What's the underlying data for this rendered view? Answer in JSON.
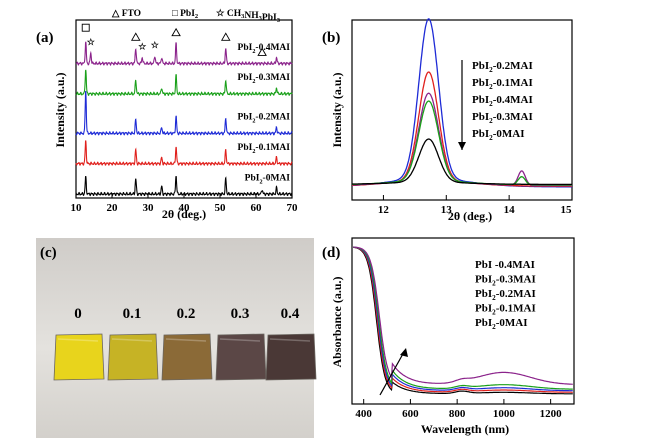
{
  "figure": {
    "panel_a_label": "(a)",
    "panel_b_label": "(b)",
    "panel_c_label": "(c)",
    "panel_d_label": "(d)"
  },
  "photo": {
    "samples": [
      "0",
      "0.1",
      "0.2",
      "0.3",
      "0.4"
    ],
    "film_colors": [
      "#e8d41c",
      "#c6b325",
      "#8b6a37",
      "#5b4746",
      "#4a3836"
    ]
  },
  "chart_data": [
    {
      "type": "line",
      "panel": "(a)",
      "xlabel": "2θ (deg.)",
      "ylabel": "Intensity (a.u.)",
      "xlim": [
        10,
        70
      ],
      "xticks": [
        "10",
        "20",
        "30",
        "40",
        "50",
        "60",
        "70"
      ],
      "marker_legend": [
        "△ FTO",
        "□ PbI2",
        "☆ CH3NH3PbI3"
      ],
      "peak_positions_deg": {
        "PbI2": 12.7,
        "FTO": [
          26.6,
          37.8,
          51.6,
          61.7,
          65.7
        ],
        "CH3NH3PbI3": [
          14.1,
          28.4,
          31.9
        ]
      },
      "series": [
        {
          "name": "PbI2-0MAI",
          "color": "#000000",
          "offset": 0.0,
          "peaks": [
            [
              12.7,
              0.55
            ],
            [
              26.6,
              0.5
            ],
            [
              33.8,
              0.25
            ],
            [
              37.8,
              0.6
            ],
            [
              51.6,
              0.5
            ],
            [
              61.7,
              0.15
            ],
            [
              65.7,
              0.2
            ]
          ]
        },
        {
          "name": "PbI2-0.1MAI",
          "color": "#e0201c",
          "offset": 1.0,
          "peaks": [
            [
              12.7,
              0.75
            ],
            [
              26.6,
              0.45
            ],
            [
              33.8,
              0.2
            ],
            [
              37.8,
              0.55
            ],
            [
              51.6,
              0.45
            ],
            [
              65.7,
              0.2
            ]
          ]
        },
        {
          "name": "PbI2-0.2MAI",
          "color": "#1e2bd6",
          "offset": 2.0,
          "peaks": [
            [
              12.7,
              1.4
            ],
            [
              26.6,
              0.45
            ],
            [
              33.8,
              0.2
            ],
            [
              37.8,
              0.55
            ],
            [
              51.6,
              0.5
            ],
            [
              65.7,
              0.2
            ]
          ]
        },
        {
          "name": "PbI2-0.3MAI",
          "color": "#1aa01a",
          "offset": 3.3,
          "peaks": [
            [
              12.7,
              0.8
            ],
            [
              26.6,
              0.45
            ],
            [
              33.8,
              0.2
            ],
            [
              37.8,
              0.6
            ],
            [
              51.6,
              0.45
            ],
            [
              65.7,
              0.2
            ]
          ]
        },
        {
          "name": "PbI2-0.4MAI",
          "color": "#8b238b",
          "offset": 4.3,
          "peaks": [
            [
              12.7,
              0.7
            ],
            [
              14.1,
              0.35
            ],
            [
              26.6,
              0.5
            ],
            [
              28.4,
              0.2
            ],
            [
              31.9,
              0.25
            ],
            [
              33.8,
              0.2
            ],
            [
              37.8,
              0.65
            ],
            [
              51.6,
              0.5
            ],
            [
              65.7,
              0.2
            ]
          ]
        }
      ]
    },
    {
      "type": "line",
      "panel": "(b)",
      "xlabel": "2θ (deg.)",
      "ylabel": "Intensity (a.u.)",
      "xlim": [
        11.5,
        15
      ],
      "xticks": [
        "12",
        "13",
        "14",
        "15"
      ],
      "legend": [
        "PbI2-0.2MAI",
        "PbI2-0.1MAI",
        "PbI2-0.4MAI",
        "PbI2-0.3MAI",
        "PbI2-0MAI"
      ],
      "series": [
        {
          "name": "PbI2-0.2MAI",
          "color": "#1e2bd6",
          "peak_12_7": 1.0,
          "peak_14_1": 0.0
        },
        {
          "name": "PbI2-0.1MAI",
          "color": "#e0201c",
          "peak_12_7": 0.68,
          "peak_14_1": 0.0
        },
        {
          "name": "PbI2-0.4MAI",
          "color": "#8b238b",
          "peak_12_7": 0.55,
          "peak_14_1": 0.09
        },
        {
          "name": "PbI2-0.3MAI",
          "color": "#1aa01a",
          "peak_12_7": 0.5,
          "peak_14_1": 0.05
        },
        {
          "name": "PbI2-0MAI",
          "color": "#000000",
          "peak_12_7": 0.27,
          "peak_14_1": 0.0
        }
      ]
    },
    {
      "type": "line",
      "panel": "(d)",
      "xlabel": "Wavelength (nm)",
      "ylabel": "Absorbance (a.u.)",
      "xlim": [
        350,
        1300
      ],
      "xticks": [
        "400",
        "600",
        "800",
        "1000",
        "1200"
      ],
      "legend": [
        "PbI -0.4MAI",
        "PbI2-0.3MAI",
        "PbI2-0.2MAI",
        "PbI2-0.1MAI",
        "PbI2-0MAI"
      ],
      "series": [
        {
          "name": "PbI2-0.4MAI",
          "color": "#8b238b",
          "tail": 0.1,
          "bump_1000": 0.08
        },
        {
          "name": "PbI2-0.3MAI",
          "color": "#1aa01a",
          "tail": 0.07,
          "bump_1000": 0.03
        },
        {
          "name": "PbI2-0.2MAI",
          "color": "#1e2bd6",
          "tail": 0.06,
          "bump_1000": 0.02
        },
        {
          "name": "PbI2-0.1MAI",
          "color": "#e0201c",
          "tail": 0.05,
          "bump_1000": 0.015
        },
        {
          "name": "PbI2-0MAI",
          "color": "#000000",
          "tail": 0.04,
          "bump_1000": 0.01
        }
      ]
    }
  ]
}
